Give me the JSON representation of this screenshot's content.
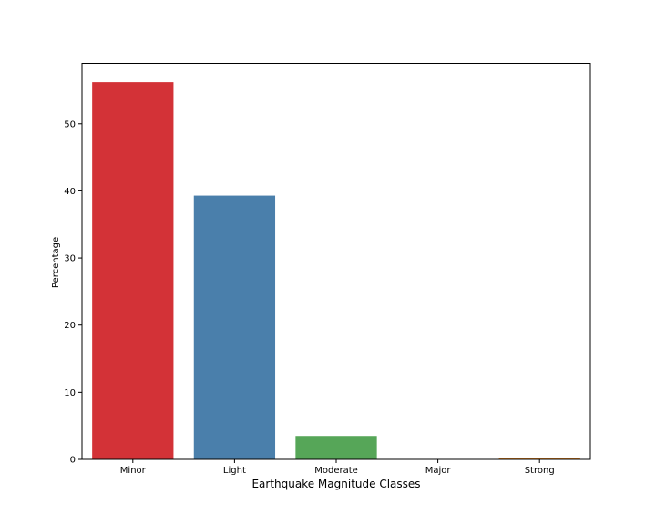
{
  "chart_data": {
    "type": "bar",
    "title": "",
    "xlabel": "Earthquake Magnitude Classes",
    "ylabel": "Percentage",
    "categories": [
      "Minor",
      "Light",
      "Moderate",
      "Major",
      "Strong"
    ],
    "values": [
      56.2,
      39.3,
      3.5,
      0.02,
      0.15
    ],
    "colors": [
      "#d33237",
      "#4a7fab",
      "#56a658",
      "#8e5a9c",
      "#f08a22"
    ],
    "yticks": [
      0,
      10,
      20,
      30,
      40,
      50
    ],
    "ylim": [
      0,
      59
    ],
    "grid": false,
    "legend": "none"
  }
}
